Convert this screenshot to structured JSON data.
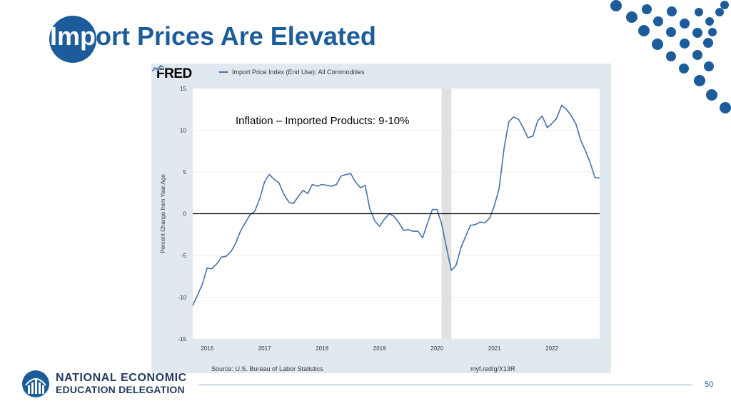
{
  "slide": {
    "title_highlight": "Imp",
    "title_rest": "ort Prices Are Elevated",
    "page_number": "50",
    "org_line1": "NATIONAL ECONOMIC",
    "org_line2": "EDUCATION DELEGATION",
    "brand_color": "#1d5c9b"
  },
  "fred": {
    "logo": "FRED",
    "source": "Source: U.S. Bureau of Labor Statistics",
    "url": "myf.red/g/X13R"
  },
  "chart_data": {
    "type": "line",
    "title": "",
    "legend": [
      "Import Price Index (End Use): All Commodities"
    ],
    "annotation": "Inflation – Imported Products: 9-10%",
    "xlabel": "",
    "ylabel": "Percent Change from Year Ago",
    "ylim": [
      -15,
      15
    ],
    "yticks": [
      15,
      10,
      5,
      0,
      -5,
      -10,
      -15
    ],
    "xlim": [
      2015.75,
      2022.83
    ],
    "xticks": [
      "2016",
      "2017",
      "2018",
      "2019",
      "2020",
      "2021",
      "2022"
    ],
    "recession": [
      2020.08,
      2020.25
    ],
    "zero_line": 0,
    "line_color": "#4572a7",
    "series": [
      {
        "name": "Import Price Index (End Use): All Commodities",
        "x": [
          2015.75,
          2015.83,
          2015.92,
          2016.0,
          2016.08,
          2016.17,
          2016.25,
          2016.33,
          2016.42,
          2016.5,
          2016.58,
          2016.67,
          2016.75,
          2016.83,
          2016.92,
          2017.0,
          2017.08,
          2017.17,
          2017.25,
          2017.33,
          2017.42,
          2017.5,
          2017.58,
          2017.67,
          2017.75,
          2017.83,
          2017.92,
          2018.0,
          2018.08,
          2018.17,
          2018.25,
          2018.33,
          2018.42,
          2018.5,
          2018.58,
          2018.67,
          2018.75,
          2018.83,
          2018.92,
          2019.0,
          2019.08,
          2019.17,
          2019.25,
          2019.33,
          2019.42,
          2019.5,
          2019.58,
          2019.67,
          2019.75,
          2019.83,
          2019.92,
          2020.0,
          2020.08,
          2020.17,
          2020.25,
          2020.33,
          2020.42,
          2020.5,
          2020.58,
          2020.67,
          2020.75,
          2020.83,
          2020.92,
          2021.0,
          2021.08,
          2021.17,
          2021.25,
          2021.33,
          2021.42,
          2021.5,
          2021.58,
          2021.67,
          2021.75,
          2021.83,
          2021.92,
          2022.0,
          2022.08,
          2022.17,
          2022.25,
          2022.33,
          2022.42,
          2022.5,
          2022.58,
          2022.67,
          2022.75,
          2022.83
        ],
        "values": [
          -11.0,
          -9.8,
          -8.4,
          -6.5,
          -6.6,
          -6.0,
          -5.2,
          -5.1,
          -4.5,
          -3.5,
          -2.1,
          -1.0,
          -0.1,
          0.3,
          1.9,
          3.8,
          4.7,
          4.1,
          3.7,
          2.4,
          1.4,
          1.2,
          2.0,
          2.8,
          2.4,
          3.5,
          3.3,
          3.5,
          3.4,
          3.3,
          3.5,
          4.5,
          4.7,
          4.8,
          3.8,
          3.1,
          3.4,
          0.6,
          -0.9,
          -1.5,
          -0.7,
          0.0,
          -0.3,
          -1.0,
          -2.0,
          -1.9,
          -2.1,
          -2.1,
          -2.9,
          -1.2,
          0.5,
          0.5,
          -1.2,
          -4.2,
          -6.8,
          -6.2,
          -4.0,
          -2.7,
          -1.4,
          -1.3,
          -1.0,
          -1.1,
          -0.5,
          1.0,
          3.0,
          8.0,
          11.0,
          11.6,
          11.3,
          10.3,
          9.1,
          9.3,
          11.1,
          11.7,
          10.3,
          10.8,
          11.4,
          13.0,
          12.5,
          11.8,
          10.7,
          8.8,
          7.6,
          6.0,
          4.3,
          4.3
        ]
      }
    ]
  }
}
